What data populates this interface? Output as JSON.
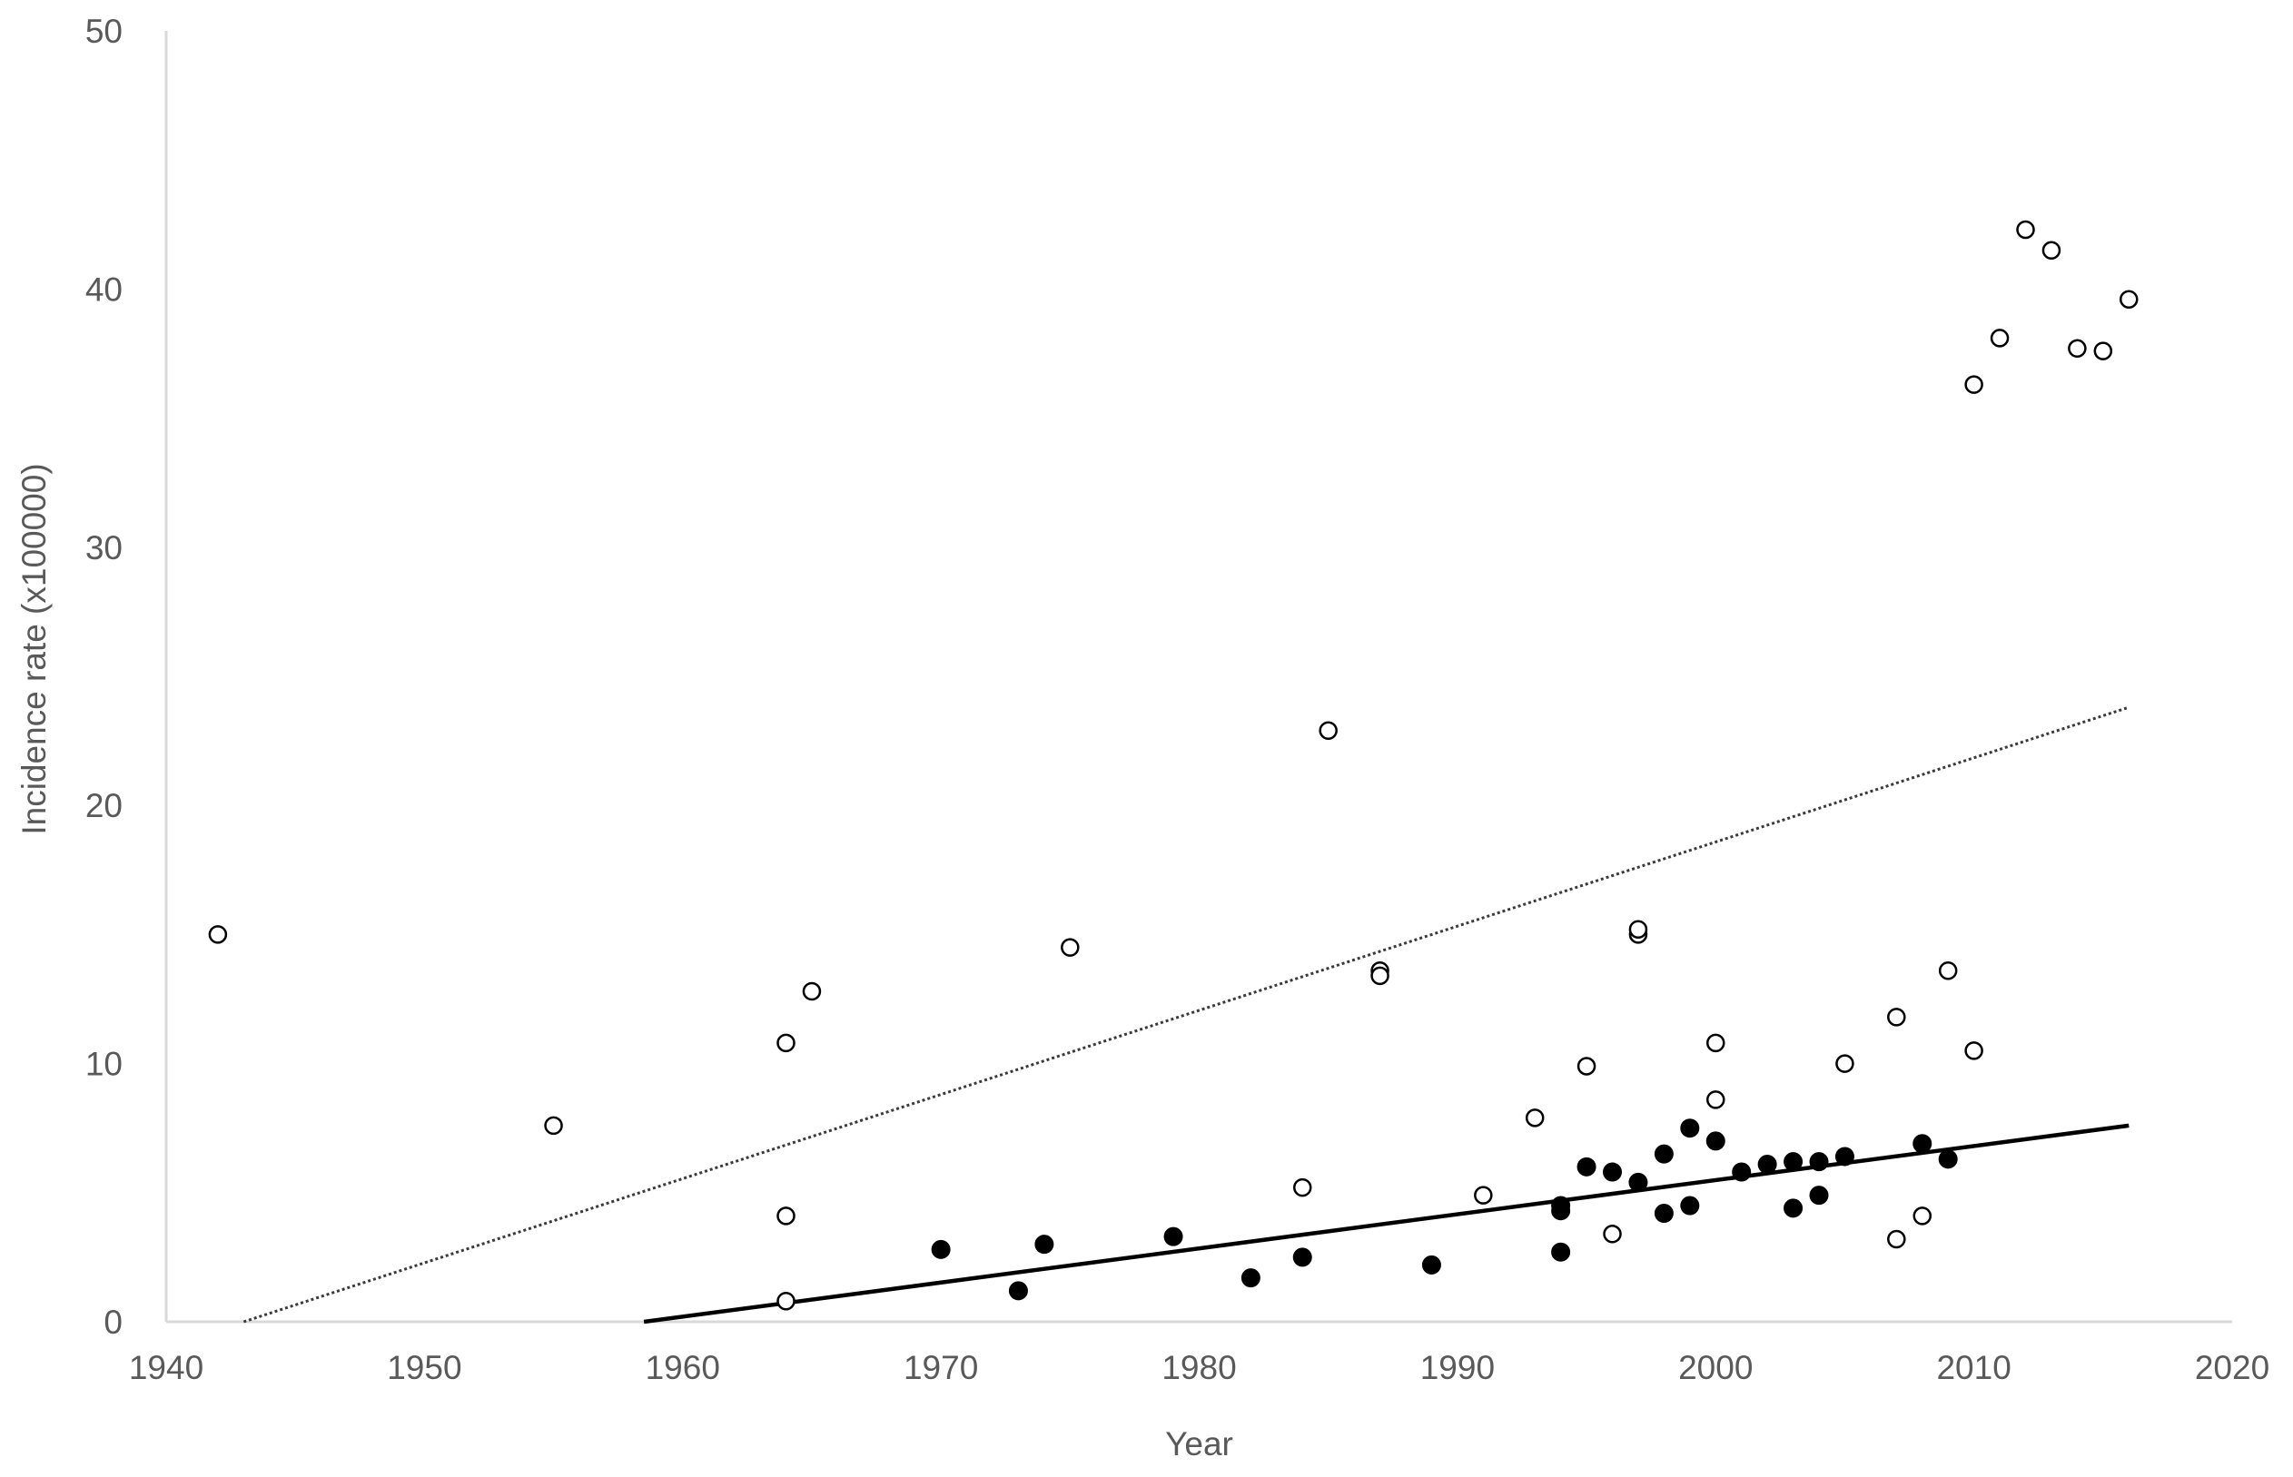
{
  "chart_data": {
    "type": "scatter",
    "title": "",
    "xlabel": "Year",
    "ylabel": "Incidence rate (x100000)",
    "xlim": [
      1940,
      2020
    ],
    "ylim": [
      0,
      50
    ],
    "xticks": [
      "1940",
      "1950",
      "1960",
      "1970",
      "1980",
      "1990",
      "2000",
      "2010",
      "2020"
    ],
    "yticks": [
      "0",
      "10",
      "20",
      "30",
      "40",
      "50"
    ],
    "grid": false,
    "legend": "none",
    "colors": {
      "axis": "#d9d9d9",
      "tick_text": "#595959",
      "marker": "#000000",
      "open_fill": "#ffffff"
    },
    "series": [
      {
        "marker": "open-circle",
        "points": [
          {
            "x": 1942,
            "y": 15.0
          },
          {
            "x": 1955,
            "y": 7.6
          },
          {
            "x": 1964,
            "y": 10.8
          },
          {
            "x": 1964,
            "y": 4.1
          },
          {
            "x": 1964,
            "y": 0.8
          },
          {
            "x": 1965,
            "y": 12.8
          },
          {
            "x": 1975,
            "y": 14.5
          },
          {
            "x": 1984,
            "y": 5.2
          },
          {
            "x": 1985,
            "y": 22.9
          },
          {
            "x": 1987,
            "y": 13.6
          },
          {
            "x": 1987,
            "y": 13.4
          },
          {
            "x": 1991,
            "y": 4.9
          },
          {
            "x": 1993,
            "y": 7.9
          },
          {
            "x": 1995,
            "y": 9.9
          },
          {
            "x": 1996,
            "y": 3.4
          },
          {
            "x": 1997,
            "y": 15.0
          },
          {
            "x": 1997,
            "y": 15.2
          },
          {
            "x": 2000,
            "y": 10.8
          },
          {
            "x": 2000,
            "y": 8.6
          },
          {
            "x": 2005,
            "y": 10.0
          },
          {
            "x": 2007,
            "y": 11.8
          },
          {
            "x": 2007,
            "y": 3.2
          },
          {
            "x": 2008,
            "y": 4.1
          },
          {
            "x": 2009,
            "y": 13.6
          },
          {
            "x": 2010,
            "y": 10.5
          },
          {
            "x": 2010,
            "y": 36.3
          },
          {
            "x": 2011,
            "y": 38.1
          },
          {
            "x": 2012,
            "y": 42.3
          },
          {
            "x": 2013,
            "y": 41.5
          },
          {
            "x": 2014,
            "y": 37.7
          },
          {
            "x": 2015,
            "y": 37.6
          },
          {
            "x": 2016,
            "y": 39.6
          }
        ],
        "trendline": {
          "style": "dotted",
          "from": {
            "x": 1943,
            "y": 0
          },
          "to": {
            "x": 2016,
            "y": 23.8
          }
        }
      },
      {
        "marker": "filled-circle",
        "points": [
          {
            "x": 1970,
            "y": 2.8
          },
          {
            "x": 1973,
            "y": 1.2
          },
          {
            "x": 1974,
            "y": 3.0
          },
          {
            "x": 1979,
            "y": 3.3
          },
          {
            "x": 1982,
            "y": 1.7
          },
          {
            "x": 1984,
            "y": 2.5
          },
          {
            "x": 1989,
            "y": 2.2
          },
          {
            "x": 1994,
            "y": 4.5
          },
          {
            "x": 1994,
            "y": 4.3
          },
          {
            "x": 1994,
            "y": 2.7
          },
          {
            "x": 1995,
            "y": 6.0
          },
          {
            "x": 1996,
            "y": 5.8
          },
          {
            "x": 1997,
            "y": 5.4
          },
          {
            "x": 1998,
            "y": 6.5
          },
          {
            "x": 1998,
            "y": 4.2
          },
          {
            "x": 1999,
            "y": 7.5
          },
          {
            "x": 1999,
            "y": 4.5
          },
          {
            "x": 2000,
            "y": 7.0
          },
          {
            "x": 2001,
            "y": 5.8
          },
          {
            "x": 2002,
            "y": 6.1
          },
          {
            "x": 2003,
            "y": 6.2
          },
          {
            "x": 2003,
            "y": 4.4
          },
          {
            "x": 2004,
            "y": 6.2
          },
          {
            "x": 2004,
            "y": 4.9
          },
          {
            "x": 2005,
            "y": 6.4
          },
          {
            "x": 2008,
            "y": 6.9
          },
          {
            "x": 2009,
            "y": 6.3
          }
        ],
        "trendline": {
          "style": "solid",
          "from": {
            "x": 1958.5,
            "y": 0
          },
          "to": {
            "x": 2016,
            "y": 7.6
          }
        }
      }
    ]
  }
}
